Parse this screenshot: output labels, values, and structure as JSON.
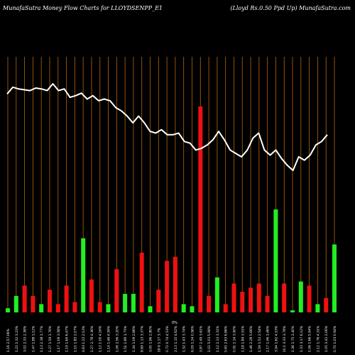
{
  "header": {
    "left_title": "MunafaSutra  Money Flow  Charts for LLOYDSENPP_E1",
    "right_title": "(Lloyd Rs.0.50  Ppd Up) MunafaSutra.com"
  },
  "colors": {
    "background": "#000000",
    "gridline": "#b8650f",
    "line": "#ffffff",
    "up_bar": "#22ee22",
    "down_bar": "#ee1111"
  },
  "chart_data": {
    "type": "bar",
    "title": "MunafaSutra  Money Flow  Charts for LLOYDSENPP_E1",
    "subtitle": "(Lloyd Rs.0.50  Ppd Up) MunafaSutra.com",
    "grid": true,
    "ylim": [
      0,
      100
    ],
    "series": [
      {
        "type": "bar",
        "values": [
          2,
          8,
          13,
          8,
          4,
          11,
          4,
          13,
          5,
          36,
          16,
          5,
          4,
          21,
          9,
          9,
          29,
          3,
          11,
          25,
          27,
          4,
          3,
          100,
          8,
          17,
          4,
          14,
          10,
          12,
          14,
          8,
          50,
          14,
          1,
          15,
          13,
          4,
          7,
          33
        ],
        "directions": [
          "up",
          "up",
          "down",
          "down",
          "up",
          "down",
          "down",
          "down",
          "down",
          "up",
          "down",
          "down",
          "up",
          "down",
          "up",
          "up",
          "down",
          "up",
          "down",
          "down",
          "down",
          "up",
          "up",
          "down",
          "down",
          "up",
          "down",
          "down",
          "down",
          "down",
          "down",
          "down",
          "up",
          "down",
          "up",
          "up",
          "down",
          "up",
          "down",
          "up"
        ]
      },
      {
        "type": "line",
        "values": [
          95,
          99,
          98,
          97.5,
          97,
          98.5,
          98,
          97,
          101,
          97,
          98,
          93,
          94,
          95.5,
          92,
          94,
          91,
          92,
          91,
          87,
          85,
          82,
          78,
          82,
          78,
          73,
          72,
          74,
          71,
          71,
          72,
          67,
          66,
          62,
          63,
          65,
          68,
          73,
          68,
          62,
          60,
          58,
          62,
          69,
          72,
          62,
          59,
          62,
          57,
          53,
          50,
          58,
          56,
          59,
          65,
          67,
          71
        ]
      }
    ],
    "x_tick_labels": [
      "1.16 2,57.06%",
      "1.22 1.32 3.23%",
      "3.02 2.33 2.38%",
      "1.47 1.88 1.12%",
      "1.13 2.38 1.77%",
      "1.27 1.59 1.76%",
      "1.17 1.09 3.58%",
      "1.19 1.69 6.47%",
      "1.10 1.85 2.07%",
      "4.63 1.22 2.13%",
      "1.27 2.78 4.36%",
      "1.12 1.00 4.16%",
      "1.14 1.46 4.59%",
      "1.06 2.56 3.20%",
      "1.51 1.89 1.75%",
      "1.34 1.09 2.86%",
      "8.69 1.13 3.37%",
      "3.00 1.96 2.80%",
      "18 6 1.17 3.7%",
      "0.72 0.74 4.53%",
      "2.13 1.15 4.62%",
      "1.52 1.43 3.74%",
      "6.09 1.24 0.56%",
      "3.87 2.49 3.61%",
      "1.02 5.03 5.98%",
      "1.12 1.13 3.31%",
      "0.65 2.63 6.86%",
      "0.91 1.14 3.90%",
      "1.18 1.84 3.51%",
      "1.46 2.28 5.66%",
      "1.59 1.51 2.54%",
      "2.17 1.46 1.46%",
      "3.94 1.62 4.53%",
      "10.1 3.33 3.78%",
      "1.36 1.75 1.40%",
      "1.33 3.17 6.12%",
      "1.06 1.66 5.94%",
      "2.12 1.76 4.31%",
      "1.05 3.41 2.06%",
      "0.70 1.03 0.94%"
    ],
    "x_extra_label": "0%"
  }
}
